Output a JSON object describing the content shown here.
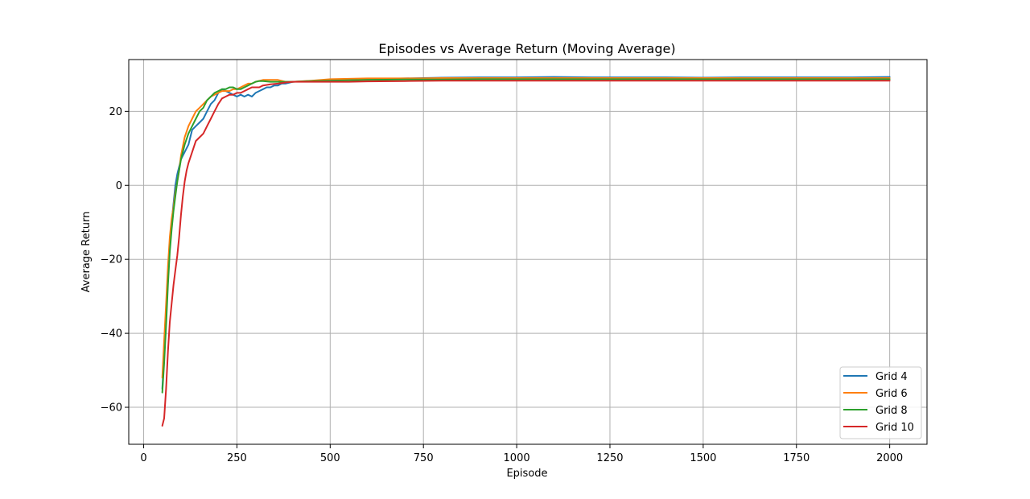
{
  "chart_data": {
    "type": "line",
    "title": "Episodes vs Average Return (Moving Average)",
    "xlabel": "Episode",
    "ylabel": "Average Return",
    "xlim": [
      -40,
      2100
    ],
    "ylim": [
      -70,
      34
    ],
    "xticks": [
      0,
      250,
      500,
      750,
      1000,
      1250,
      1500,
      1750,
      2000
    ],
    "yticks": [
      -60,
      -40,
      -20,
      0,
      20
    ],
    "grid": true,
    "legend_position": "bottom-right",
    "series": [
      {
        "name": "Grid 4",
        "color": "#1f77b4",
        "points": [
          [
            50,
            -55
          ],
          [
            55,
            -46
          ],
          [
            60,
            -35
          ],
          [
            65,
            -25
          ],
          [
            70,
            -16
          ],
          [
            75,
            -10
          ],
          [
            80,
            -5
          ],
          [
            85,
            0
          ],
          [
            90,
            3
          ],
          [
            95,
            5
          ],
          [
            100,
            7
          ],
          [
            110,
            9
          ],
          [
            120,
            11
          ],
          [
            130,
            15
          ],
          [
            140,
            16
          ],
          [
            150,
            17
          ],
          [
            160,
            18
          ],
          [
            170,
            20
          ],
          [
            180,
            22
          ],
          [
            190,
            23
          ],
          [
            200,
            25
          ],
          [
            210,
            26
          ],
          [
            220,
            25.5
          ],
          [
            230,
            25
          ],
          [
            240,
            24.5
          ],
          [
            250,
            24
          ],
          [
            260,
            24.5
          ],
          [
            270,
            24
          ],
          [
            280,
            24.5
          ],
          [
            290,
            24
          ],
          [
            300,
            25
          ],
          [
            310,
            25.5
          ],
          [
            320,
            26
          ],
          [
            330,
            26.5
          ],
          [
            340,
            26.5
          ],
          [
            350,
            27
          ],
          [
            360,
            27
          ],
          [
            370,
            27.5
          ],
          [
            380,
            27.5
          ],
          [
            400,
            28
          ],
          [
            450,
            28.2
          ],
          [
            500,
            28.5
          ],
          [
            550,
            28.6
          ],
          [
            600,
            28.7
          ],
          [
            650,
            28.8
          ],
          [
            700,
            28.9
          ],
          [
            750,
            29
          ],
          [
            800,
            29.1
          ],
          [
            900,
            29.2
          ],
          [
            1000,
            29.2
          ],
          [
            1100,
            29.3
          ],
          [
            1200,
            29.2
          ],
          [
            1300,
            29.2
          ],
          [
            1400,
            29.2
          ],
          [
            1500,
            29.1
          ],
          [
            1600,
            29.2
          ],
          [
            1700,
            29.2
          ],
          [
            1800,
            29.2
          ],
          [
            1900,
            29.2
          ],
          [
            2000,
            29.3
          ]
        ]
      },
      {
        "name": "Grid 6",
        "color": "#ff7f0e",
        "points": [
          [
            50,
            -52
          ],
          [
            55,
            -42
          ],
          [
            60,
            -32
          ],
          [
            65,
            -22
          ],
          [
            70,
            -14
          ],
          [
            75,
            -9
          ],
          [
            80,
            -6
          ],
          [
            85,
            -2
          ],
          [
            90,
            1
          ],
          [
            95,
            4
          ],
          [
            100,
            8
          ],
          [
            110,
            13
          ],
          [
            120,
            16
          ],
          [
            130,
            18
          ],
          [
            140,
            20
          ],
          [
            150,
            21
          ],
          [
            160,
            22
          ],
          [
            170,
            23
          ],
          [
            180,
            24
          ],
          [
            190,
            24.5
          ],
          [
            200,
            25
          ],
          [
            210,
            25.5
          ],
          [
            220,
            25.5
          ],
          [
            230,
            25.5
          ],
          [
            240,
            26
          ],
          [
            250,
            26
          ],
          [
            260,
            26.5
          ],
          [
            270,
            27
          ],
          [
            280,
            27.5
          ],
          [
            290,
            27.5
          ],
          [
            300,
            28
          ],
          [
            320,
            28.5
          ],
          [
            340,
            28.5
          ],
          [
            360,
            28.5
          ],
          [
            380,
            28
          ],
          [
            400,
            28
          ],
          [
            450,
            28.3
          ],
          [
            500,
            28.7
          ],
          [
            550,
            28.8
          ],
          [
            600,
            28.9
          ],
          [
            650,
            28.9
          ],
          [
            700,
            28.9
          ],
          [
            750,
            28.9
          ],
          [
            800,
            29
          ],
          [
            900,
            29
          ],
          [
            1000,
            29
          ],
          [
            1100,
            29
          ],
          [
            1200,
            29
          ],
          [
            1300,
            29
          ],
          [
            1400,
            29
          ],
          [
            1500,
            29
          ],
          [
            1600,
            29
          ],
          [
            1700,
            29
          ],
          [
            1800,
            29
          ],
          [
            1900,
            29
          ],
          [
            2000,
            29
          ]
        ]
      },
      {
        "name": "Grid 8",
        "color": "#2ca02c",
        "points": [
          [
            50,
            -56
          ],
          [
            55,
            -48
          ],
          [
            60,
            -38
          ],
          [
            65,
            -27
          ],
          [
            70,
            -18
          ],
          [
            75,
            -12
          ],
          [
            80,
            -7
          ],
          [
            85,
            -3
          ],
          [
            90,
            1
          ],
          [
            95,
            4
          ],
          [
            100,
            7
          ],
          [
            110,
            11
          ],
          [
            120,
            14
          ],
          [
            130,
            16
          ],
          [
            140,
            18
          ],
          [
            150,
            20
          ],
          [
            160,
            21
          ],
          [
            170,
            23
          ],
          [
            180,
            24
          ],
          [
            190,
            25
          ],
          [
            200,
            25.5
          ],
          [
            210,
            26
          ],
          [
            220,
            26
          ],
          [
            230,
            26.5
          ],
          [
            240,
            26.5
          ],
          [
            250,
            26
          ],
          [
            260,
            26
          ],
          [
            270,
            26.5
          ],
          [
            280,
            27
          ],
          [
            290,
            27.5
          ],
          [
            300,
            28
          ],
          [
            310,
            28.2
          ],
          [
            320,
            28.2
          ],
          [
            340,
            28
          ],
          [
            360,
            28
          ],
          [
            380,
            28
          ],
          [
            400,
            28
          ],
          [
            450,
            28.2
          ],
          [
            500,
            28.3
          ],
          [
            550,
            28.4
          ],
          [
            600,
            28.5
          ],
          [
            700,
            28.6
          ],
          [
            800,
            28.6
          ],
          [
            900,
            28.7
          ],
          [
            1000,
            28.7
          ],
          [
            1100,
            28.7
          ],
          [
            1200,
            28.7
          ],
          [
            1300,
            28.7
          ],
          [
            1400,
            28.7
          ],
          [
            1500,
            28.7
          ],
          [
            1600,
            28.7
          ],
          [
            1700,
            28.7
          ],
          [
            1800,
            28.7
          ],
          [
            1900,
            28.7
          ],
          [
            2000,
            28.7
          ]
        ]
      },
      {
        "name": "Grid 10",
        "color": "#d62728",
        "points": [
          [
            50,
            -65
          ],
          [
            55,
            -63
          ],
          [
            60,
            -55
          ],
          [
            65,
            -45
          ],
          [
            70,
            -37
          ],
          [
            75,
            -32
          ],
          [
            80,
            -27
          ],
          [
            85,
            -23
          ],
          [
            90,
            -19
          ],
          [
            95,
            -14
          ],
          [
            100,
            -8
          ],
          [
            105,
            -3
          ],
          [
            110,
            1
          ],
          [
            115,
            4
          ],
          [
            120,
            6
          ],
          [
            130,
            9
          ],
          [
            140,
            12
          ],
          [
            150,
            13
          ],
          [
            160,
            14
          ],
          [
            170,
            16
          ],
          [
            180,
            18
          ],
          [
            190,
            20
          ],
          [
            200,
            22
          ],
          [
            210,
            23.5
          ],
          [
            220,
            24
          ],
          [
            230,
            24.5
          ],
          [
            240,
            24.5
          ],
          [
            250,
            25
          ],
          [
            260,
            25
          ],
          [
            270,
            25.5
          ],
          [
            280,
            26
          ],
          [
            290,
            26.5
          ],
          [
            300,
            26.5
          ],
          [
            310,
            26.5
          ],
          [
            320,
            27
          ],
          [
            340,
            27.3
          ],
          [
            360,
            27.5
          ],
          [
            380,
            27.8
          ],
          [
            400,
            28
          ],
          [
            450,
            28
          ],
          [
            500,
            28
          ],
          [
            550,
            28
          ],
          [
            600,
            28.1
          ],
          [
            700,
            28.2
          ],
          [
            800,
            28.3
          ],
          [
            900,
            28.3
          ],
          [
            1000,
            28.3
          ],
          [
            1100,
            28.3
          ],
          [
            1200,
            28.3
          ],
          [
            1300,
            28.3
          ],
          [
            1400,
            28.3
          ],
          [
            1500,
            28.3
          ],
          [
            1600,
            28.3
          ],
          [
            1700,
            28.3
          ],
          [
            1800,
            28.3
          ],
          [
            1900,
            28.3
          ],
          [
            2000,
            28.3
          ]
        ]
      }
    ]
  }
}
